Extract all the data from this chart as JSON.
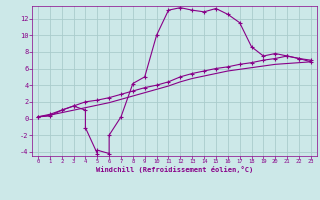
{
  "bg_color": "#cce8e8",
  "grid_color": "#aacccc",
  "line_color": "#880088",
  "marker_color": "#880088",
  "xlabel": "Windchill (Refroidissement éolien,°C)",
  "xlabel_color": "#880088",
  "tick_color": "#880088",
  "xlim": [
    -0.5,
    23.5
  ],
  "ylim": [
    -4.5,
    13.5
  ],
  "xticks": [
    0,
    1,
    2,
    3,
    4,
    5,
    6,
    7,
    8,
    9,
    10,
    11,
    12,
    13,
    14,
    15,
    16,
    17,
    18,
    19,
    20,
    21,
    22,
    23
  ],
  "yticks": [
    -4,
    -2,
    0,
    2,
    4,
    6,
    8,
    10,
    12
  ],
  "line1_x": [
    0,
    1,
    2,
    3,
    4,
    4,
    5,
    5,
    6,
    6,
    7,
    8,
    9,
    10,
    11,
    12,
    13,
    14,
    15,
    16,
    17,
    18,
    19,
    20,
    21,
    22,
    23
  ],
  "line1_y": [
    0.2,
    0.3,
    1.0,
    1.5,
    1.0,
    -1.1,
    -4.2,
    -3.8,
    -4.2,
    -2.0,
    0.2,
    4.2,
    5.0,
    10.0,
    13.0,
    13.3,
    13.0,
    12.8,
    13.2,
    12.5,
    11.5,
    8.6,
    7.5,
    7.8,
    7.5,
    7.2,
    6.8
  ],
  "line2_x": [
    0,
    1,
    2,
    3,
    4,
    5,
    6,
    7,
    8,
    9,
    10,
    11,
    12,
    13,
    14,
    15,
    16,
    17,
    18,
    19,
    20,
    21,
    22,
    23
  ],
  "line2_y": [
    0.2,
    0.5,
    1.0,
    1.5,
    2.0,
    2.2,
    2.5,
    2.9,
    3.3,
    3.7,
    4.0,
    4.4,
    5.0,
    5.4,
    5.7,
    6.0,
    6.2,
    6.5,
    6.7,
    7.0,
    7.2,
    7.5,
    7.2,
    7.0
  ],
  "line3_x": [
    0,
    1,
    2,
    3,
    4,
    5,
    6,
    7,
    8,
    9,
    10,
    11,
    12,
    13,
    14,
    15,
    16,
    17,
    18,
    19,
    20,
    21,
    22,
    23
  ],
  "line3_y": [
    0.2,
    0.4,
    0.7,
    1.0,
    1.3,
    1.6,
    1.9,
    2.3,
    2.7,
    3.1,
    3.5,
    3.9,
    4.4,
    4.8,
    5.1,
    5.4,
    5.7,
    5.9,
    6.1,
    6.3,
    6.5,
    6.6,
    6.7,
    6.8
  ]
}
